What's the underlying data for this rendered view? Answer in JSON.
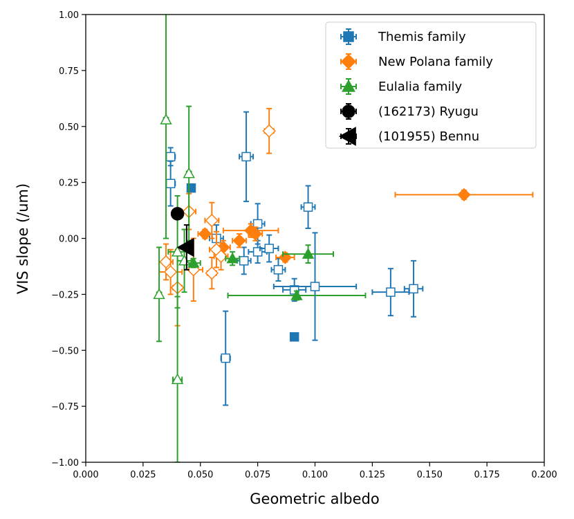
{
  "chart_data": {
    "type": "scatter",
    "title": "",
    "xlabel": "Geometric albedo",
    "ylabel": "VIS slope (/um)",
    "xlim": [
      0.0,
      0.2
    ],
    "ylim": [
      -1.0,
      1.0
    ],
    "xticks": [
      0.0,
      0.025,
      0.05,
      0.075,
      0.1,
      0.125,
      0.15,
      0.175,
      0.2
    ],
    "xtick_labels": [
      "0.000",
      "0.025",
      "0.050",
      "0.075",
      "0.100",
      "0.125",
      "0.150",
      "0.175",
      "0.200"
    ],
    "yticks": [
      -1.0,
      -0.75,
      -0.5,
      -0.25,
      0.0,
      0.25,
      0.5,
      0.75,
      1.0
    ],
    "ytick_labels": [
      "−1.00",
      "−0.75",
      "−0.50",
      "−0.25",
      "0.00",
      "0.25",
      "0.50",
      "0.75",
      "1.00"
    ],
    "grid": false,
    "legend_position": "top-right",
    "series": [
      {
        "name": "Themis family",
        "color": "#1f77b4",
        "marker": "square",
        "points": [
          {
            "x": 0.046,
            "y": 0.225,
            "filled": true
          },
          {
            "x": 0.091,
            "y": -0.44,
            "filled": true
          },
          {
            "x": 0.037,
            "y": 0.365,
            "xerr": 0.002,
            "yerr": 0.04
          },
          {
            "x": 0.037,
            "y": 0.245,
            "xerr": 0.002,
            "yerr": 0.1
          },
          {
            "x": 0.07,
            "y": 0.365,
            "xerr": 0.003,
            "yerr": 0.2
          },
          {
            "x": 0.097,
            "y": 0.14,
            "xerr": 0.003,
            "yerr": 0.095
          },
          {
            "x": 0.057,
            "y": 0.0,
            "xerr": 0.003,
            "yerr": 0.06
          },
          {
            "x": 0.075,
            "y": 0.065,
            "xerr": 0.003,
            "yerr": 0.09
          },
          {
            "x": 0.069,
            "y": -0.1,
            "xerr": 0.003,
            "yerr": 0.06
          },
          {
            "x": 0.075,
            "y": -0.06,
            "xerr": 0.004,
            "yerr": 0.05
          },
          {
            "x": 0.08,
            "y": -0.045,
            "xerr": 0.004,
            "yerr": 0.06
          },
          {
            "x": 0.084,
            "y": -0.14,
            "xerr": 0.003,
            "yerr": 0.05
          },
          {
            "x": 0.091,
            "y": -0.23,
            "xerr": 0.005,
            "yerr": 0.05
          },
          {
            "x": 0.1,
            "y": -0.215,
            "xerr": 0.018,
            "yerr": 0.24
          },
          {
            "x": 0.133,
            "y": -0.24,
            "xerr": 0.008,
            "yerr": 0.105
          },
          {
            "x": 0.143,
            "y": -0.225,
            "xerr": 0.004,
            "yerr": 0.125
          },
          {
            "x": 0.061,
            "y": -0.535,
            "xerr": 0.002,
            "yerr": 0.21
          }
        ]
      },
      {
        "name": "New Polana family",
        "color": "#ff7f0e",
        "marker": "diamond",
        "points": [
          {
            "x": 0.165,
            "y": 0.195,
            "xerr": 0.03,
            "yerr": 0.02,
            "filled": true
          },
          {
            "x": 0.052,
            "y": 0.02,
            "xerr": 0.003,
            "yerr": 0.02,
            "filled": true
          },
          {
            "x": 0.06,
            "y": -0.04,
            "xerr": 0.003,
            "yerr": 0.03,
            "filled": true
          },
          {
            "x": 0.067,
            "y": -0.01,
            "xerr": 0.003,
            "yerr": 0.03,
            "filled": true
          },
          {
            "x": 0.072,
            "y": 0.035,
            "xerr": 0.012,
            "yerr": 0.03,
            "filled": true
          },
          {
            "x": 0.074,
            "y": 0.02,
            "xerr": 0.003,
            "yerr": 0.03,
            "filled": true
          },
          {
            "x": 0.087,
            "y": -0.085,
            "xerr": 0.004,
            "yerr": 0.02,
            "filled": true
          },
          {
            "x": 0.08,
            "y": 0.48,
            "xerr": 0.002,
            "yerr": 0.1
          },
          {
            "x": 0.045,
            "y": 0.12,
            "xerr": 0.003,
            "yerr": 0.08
          },
          {
            "x": 0.055,
            "y": 0.08,
            "xerr": 0.003,
            "yerr": 0.08
          },
          {
            "x": 0.035,
            "y": -0.105,
            "xerr": 0.003,
            "yerr": 0.08
          },
          {
            "x": 0.037,
            "y": -0.15,
            "xerr": 0.005,
            "yerr": 0.1
          },
          {
            "x": 0.04,
            "y": -0.22,
            "xerr": 0.002,
            "yerr": 0.17
          },
          {
            "x": 0.047,
            "y": -0.14,
            "xerr": 0.004,
            "yerr": 0.14
          },
          {
            "x": 0.055,
            "y": -0.155,
            "xerr": 0.002,
            "yerr": 0.07
          },
          {
            "x": 0.057,
            "y": -0.05,
            "xerr": 0.003,
            "yerr": 0.08
          },
          {
            "x": 0.059,
            "y": -0.08,
            "xerr": 0.003,
            "yerr": 0.06
          }
        ]
      },
      {
        "name": "Eulalia family",
        "color": "#2ca02c",
        "marker": "triangle",
        "points": [
          {
            "x": 0.097,
            "y": -0.07,
            "xerr": 0.011,
            "yerr": 0.04,
            "filled": true
          },
          {
            "x": 0.092,
            "y": -0.255,
            "xerr": 0.03,
            "yerr": 0.02,
            "filled": true
          },
          {
            "x": 0.064,
            "y": -0.09,
            "xerr": 0.003,
            "yerr": 0.03,
            "filled": true
          },
          {
            "x": 0.047,
            "y": -0.11,
            "xerr": 0.003,
            "yerr": 0.02,
            "filled": true
          },
          {
            "x": 0.035,
            "y": 0.53,
            "xerr": 0.001,
            "yerr": 0.53
          },
          {
            "x": 0.045,
            "y": 0.29,
            "xerr": 0.001,
            "yerr": 0.3
          },
          {
            "x": 0.032,
            "y": -0.25,
            "xerr": 0.001,
            "yerr": 0.21
          },
          {
            "x": 0.04,
            "y": -0.63,
            "xerr": 0.002,
            "yerr": 0.37
          },
          {
            "x": 0.04,
            "y": -0.06,
            "xerr": 0.004,
            "yerr": 0.25
          },
          {
            "x": 0.043,
            "y": -0.1,
            "xerr": 0.003,
            "yerr": 0.14
          }
        ]
      },
      {
        "name": "(162173) Ryugu",
        "color": "#000000",
        "marker": "circle",
        "points": [
          {
            "x": 0.04,
            "y": 0.11,
            "xerr": 0.002,
            "yerr": 0.015,
            "filled": true
          }
        ]
      },
      {
        "name": "(101955) Bennu",
        "color": "#000000",
        "marker": "triangle-left",
        "points": [
          {
            "x": 0.044,
            "y": -0.04,
            "xerr": 0.002,
            "yerr": 0.1,
            "filled": true
          }
        ]
      }
    ]
  }
}
